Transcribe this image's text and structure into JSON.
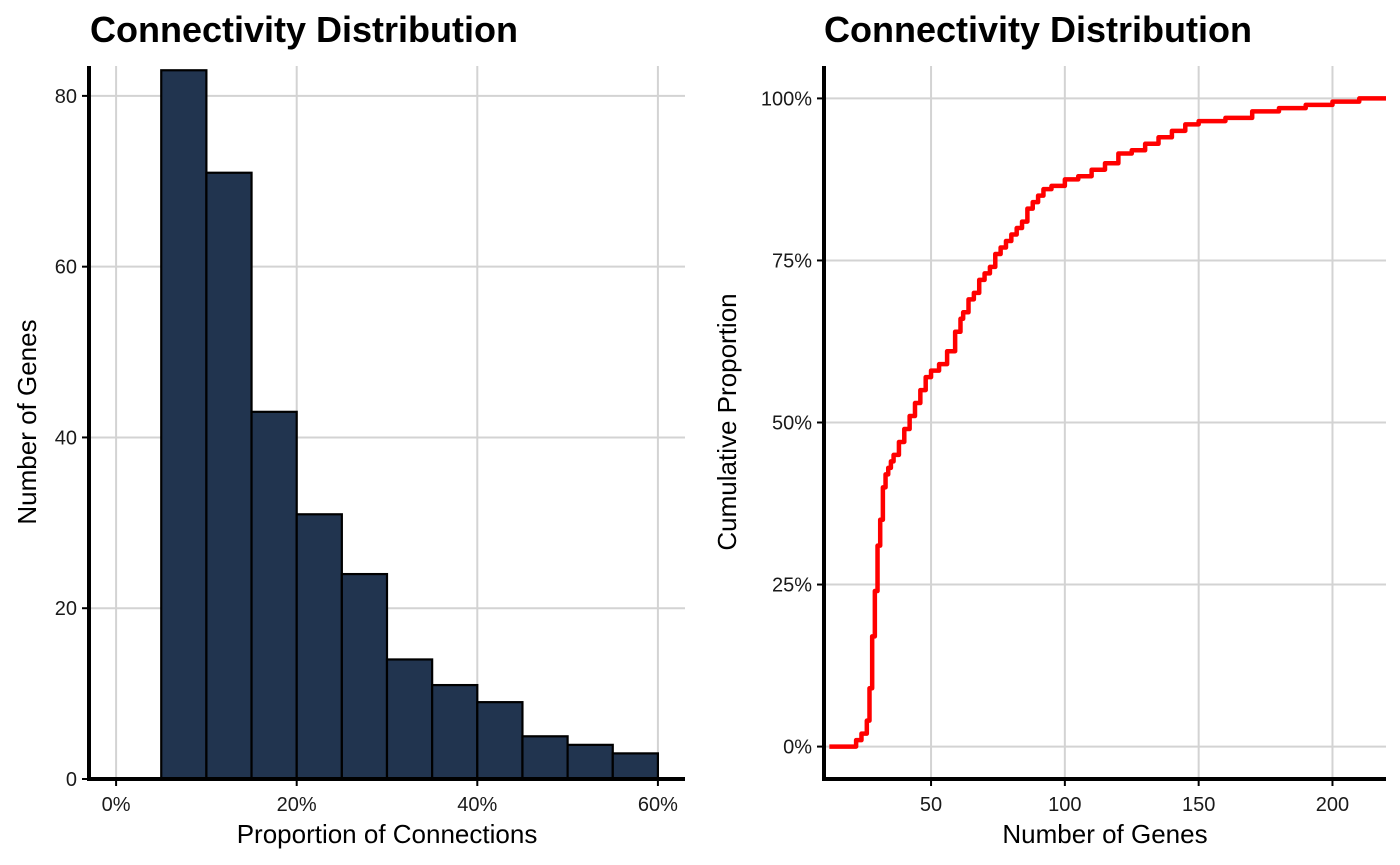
{
  "chart_data": [
    {
      "type": "bar",
      "title": "Connectivity Distribution",
      "xlabel": "Proportion of Connections",
      "ylabel": "Number of Genes",
      "bin_width": 0.05,
      "bin_starts": [
        0.05,
        0.1,
        0.15,
        0.2,
        0.25,
        0.3,
        0.35,
        0.4,
        0.45,
        0.5,
        0.55
      ],
      "values": [
        83,
        71,
        43,
        31,
        24,
        14,
        11,
        9,
        5,
        4,
        3
      ],
      "xlim": [
        -0.03,
        0.63
      ],
      "ylim": [
        0,
        83.5
      ],
      "xticks": [
        0,
        0.2,
        0.4,
        0.6
      ],
      "xtick_labels": [
        "0%",
        "20%",
        "40%",
        "60%"
      ],
      "yticks": [
        0,
        20,
        40,
        60,
        80
      ],
      "ytick_labels": [
        "0",
        "20",
        "40",
        "60",
        "80"
      ],
      "fill_color": "#21344f",
      "edge_color": "#000000",
      "grid": true
    },
    {
      "type": "line",
      "title": "Connectivity Distribution",
      "xlabel": "Number of Genes",
      "ylabel": "Cumulative Proportion",
      "x": [
        12,
        20,
        22,
        24,
        26,
        27,
        28,
        29,
        30,
        31,
        32,
        33,
        34,
        35,
        36,
        38,
        40,
        42,
        44,
        46,
        48,
        50,
        53,
        56,
        59,
        61,
        62,
        64,
        66,
        68,
        70,
        72,
        74,
        76,
        78,
        80,
        82,
        84,
        86,
        88,
        90,
        92,
        95,
        100,
        105,
        110,
        115,
        120,
        125,
        130,
        135,
        140,
        145,
        150,
        160,
        170,
        180,
        190,
        200,
        210,
        220
      ],
      "y": [
        0,
        0,
        0.01,
        0.02,
        0.04,
        0.09,
        0.17,
        0.24,
        0.31,
        0.35,
        0.4,
        0.42,
        0.43,
        0.44,
        0.45,
        0.47,
        0.49,
        0.51,
        0.53,
        0.55,
        0.57,
        0.58,
        0.59,
        0.61,
        0.64,
        0.66,
        0.67,
        0.69,
        0.7,
        0.72,
        0.73,
        0.74,
        0.76,
        0.77,
        0.78,
        0.79,
        0.8,
        0.81,
        0.83,
        0.84,
        0.85,
        0.86,
        0.865,
        0.875,
        0.88,
        0.89,
        0.9,
        0.915,
        0.92,
        0.93,
        0.94,
        0.95,
        0.96,
        0.965,
        0.97,
        0.98,
        0.985,
        0.99,
        0.995,
        1.0,
        1.0
      ],
      "xlim": [
        10,
        220
      ],
      "ylim": [
        -0.05,
        1.05
      ],
      "xticks": [
        50,
        100,
        150,
        200
      ],
      "xtick_labels": [
        "50",
        "100",
        "150",
        "200"
      ],
      "yticks": [
        0,
        0.25,
        0.5,
        0.75,
        1.0
      ],
      "ytick_labels": [
        "0%",
        "25%",
        "50%",
        "75%",
        "100%"
      ],
      "line_color": "#ff0000",
      "grid": true
    }
  ]
}
